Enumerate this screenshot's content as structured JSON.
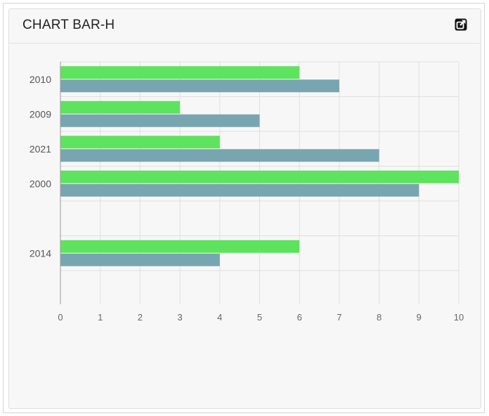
{
  "panel": {
    "title": "CHART BAR-H",
    "popout_icon": "external-link-icon"
  },
  "colors": {
    "series_a": "#5de35d",
    "series_b": "#78a6b0",
    "grid": "#e0e0e0",
    "axis": "#999999"
  },
  "chart_data": {
    "type": "bar",
    "orientation": "horizontal",
    "categories": [
      "2010",
      "2009",
      "2021",
      "2000",
      "",
      "2014"
    ],
    "series": [
      {
        "values": [
          6,
          3,
          4,
          10,
          null,
          6
        ]
      },
      {
        "values": [
          7,
          5,
          8,
          9,
          null,
          4
        ]
      }
    ],
    "xlim": [
      0,
      10
    ],
    "xticks": [
      "0",
      "1",
      "2",
      "3",
      "4",
      "5",
      "6",
      "7",
      "8",
      "9",
      "10"
    ],
    "grid": true,
    "legend": "none"
  }
}
